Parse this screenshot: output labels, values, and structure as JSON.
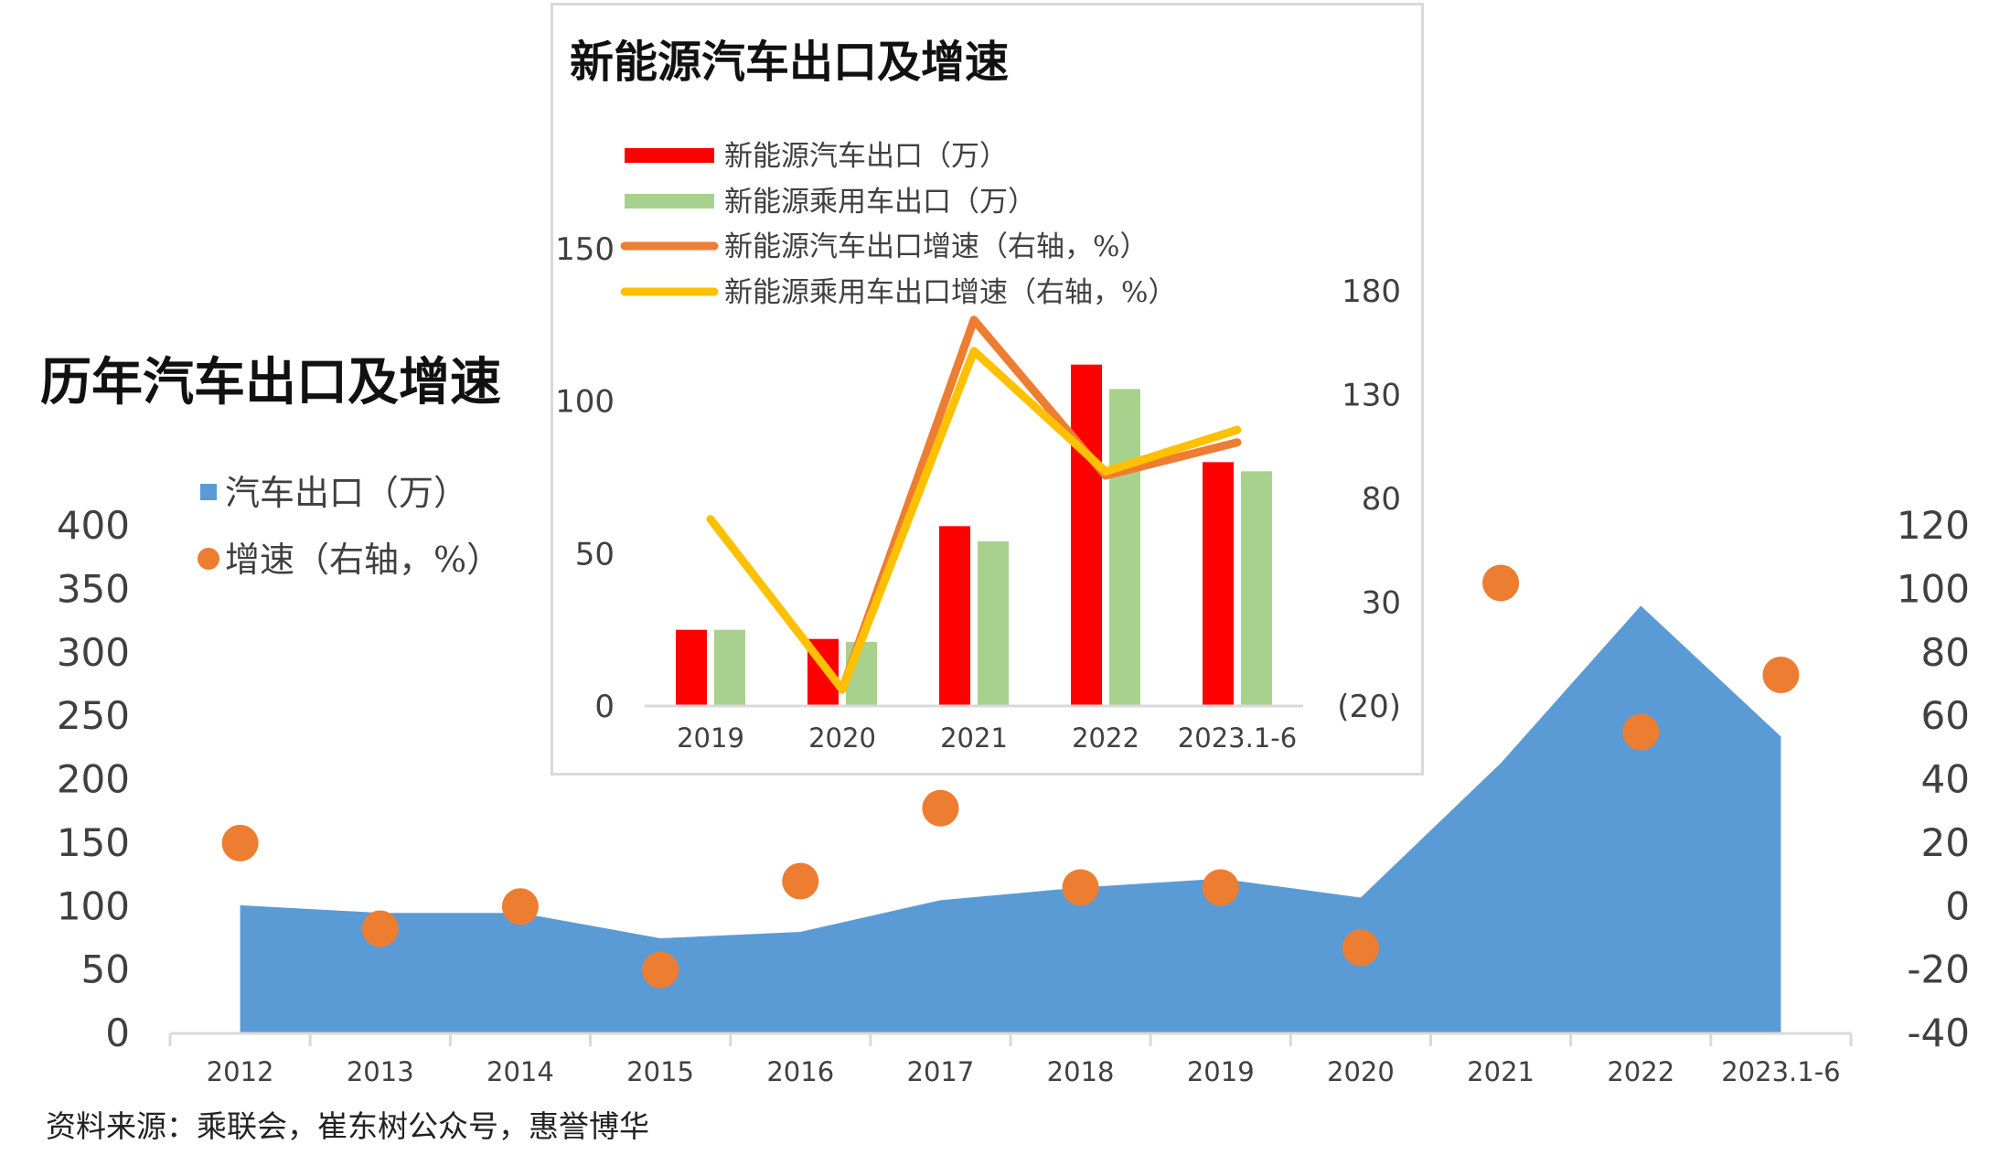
{
  "chart_data": [
    {
      "type": "area",
      "title": "历年汽车出口及增速",
      "categories": [
        "2012",
        "2013",
        "2014",
        "2015",
        "2016",
        "2017",
        "2018",
        "2019",
        "2020",
        "2021",
        "2022",
        "2023.1-6"
      ],
      "series": [
        {
          "name": "汽车出口（万）",
          "type": "area",
          "axis": "left",
          "values": [
            101,
            95,
            95,
            75,
            80,
            105,
            115,
            122,
            107,
            213,
            337,
            234
          ]
        },
        {
          "name": "增速（右轴，%）",
          "type": "scatter",
          "axis": "right",
          "values": [
            20,
            -7,
            0,
            -20,
            8,
            31,
            6,
            6,
            -13,
            102,
            55,
            73
          ]
        }
      ],
      "left_axis": {
        "ylim": [
          0,
          400
        ],
        "ticks": [
          "0",
          "50",
          "100",
          "150",
          "200",
          "250",
          "300",
          "350",
          "400"
        ]
      },
      "right_axis": {
        "ylim": [
          -40,
          120
        ],
        "ticks": [
          "-40",
          "-20",
          "0",
          "20",
          "40",
          "60",
          "80",
          "100",
          "120"
        ]
      },
      "legend_position": "top-left",
      "grid": false,
      "colors": {
        "area": "#5b9bd5",
        "dots": "#ed7d31"
      },
      "source_note": "资料来源：乘联会，崔东树公众号，惠誉博华"
    },
    {
      "type": "bar",
      "title": "新能源汽车出口及增速",
      "categories": [
        "2019",
        "2020",
        "2021",
        "2022",
        "2023.1-6"
      ],
      "series": [
        {
          "name": "新能源汽车出口（万）",
          "type": "bar",
          "axis": "left",
          "values": [
            25,
            22,
            59,
            112,
            80
          ]
        },
        {
          "name": "新能源乘用车出口（万）",
          "type": "bar",
          "axis": "left",
          "values": [
            25,
            21,
            54,
            104,
            77
          ]
        },
        {
          "name": "新能源汽车出口增速（右轴，%）",
          "type": "line",
          "axis": "right",
          "values": [
            null,
            -12,
            166,
            91,
            107
          ]
        },
        {
          "name": "新能源乘用车出口增速（右轴，%）",
          "type": "line",
          "axis": "right",
          "values": [
            70,
            -12,
            151,
            93,
            113
          ]
        }
      ],
      "left_axis": {
        "ylim": [
          0,
          150
        ],
        "ticks": [
          "0",
          "50",
          "100",
          "150"
        ]
      },
      "right_axis": {
        "ylim": [
          -20,
          180
        ],
        "ticks": [
          "(20)",
          "30",
          "80",
          "130",
          "180"
        ]
      },
      "legend_position": "top",
      "grid": false,
      "colors": {
        "bar1": "#ff0000",
        "bar2": "#a9d18e",
        "line1": "#ed7d31",
        "line2": "#ffc000"
      }
    }
  ]
}
